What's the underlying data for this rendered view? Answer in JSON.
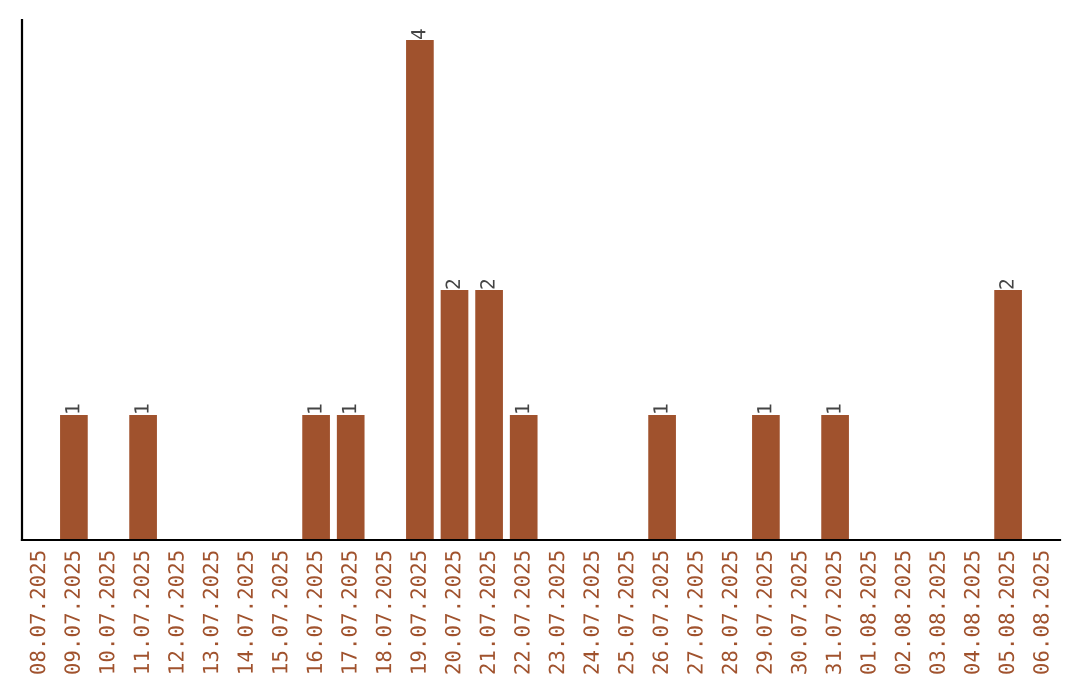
{
  "chart_data": {
    "type": "bar",
    "categories": [
      "08.07.2025",
      "09.07.2025",
      "10.07.2025",
      "11.07.2025",
      "12.07.2025",
      "13.07.2025",
      "14.07.2025",
      "15.07.2025",
      "16.07.2025",
      "17.07.2025",
      "18.07.2025",
      "19.07.2025",
      "20.07.2025",
      "21.07.2025",
      "22.07.2025",
      "23.07.2025",
      "24.07.2025",
      "25.07.2025",
      "26.07.2025",
      "27.07.2025",
      "28.07.2025",
      "29.07.2025",
      "30.07.2025",
      "31.07.2025",
      "01.08.2025",
      "02.08.2025",
      "03.08.2025",
      "04.08.2025",
      "05.08.2025",
      "06.08.2025"
    ],
    "values": [
      0,
      1,
      0,
      1,
      0,
      0,
      0,
      0,
      1,
      1,
      0,
      4,
      2,
      2,
      1,
      0,
      0,
      0,
      1,
      0,
      0,
      1,
      0,
      1,
      0,
      0,
      0,
      0,
      2,
      0
    ],
    "value_labels": [
      null,
      "1",
      null,
      "1",
      null,
      null,
      null,
      null,
      "1",
      "1",
      null,
      "4",
      "2",
      "2",
      "1",
      null,
      null,
      null,
      "1",
      null,
      null,
      "1",
      null,
      "1",
      null,
      null,
      null,
      null,
      "2",
      null
    ],
    "color": "#a0522d",
    "ylim": [
      0,
      4.16
    ],
    "tick_labels": "x",
    "grid": false,
    "legend": false
  }
}
